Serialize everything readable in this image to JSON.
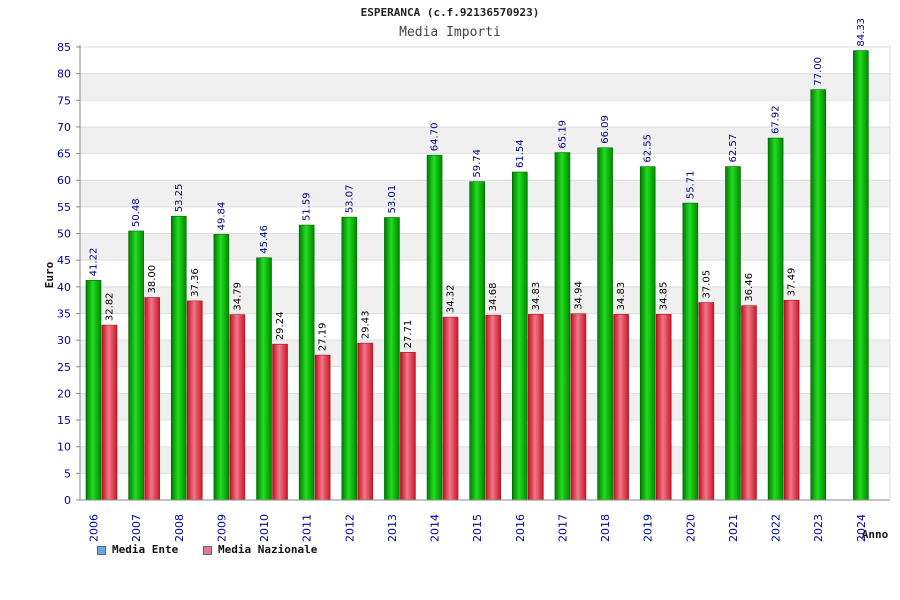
{
  "chart_data": {
    "type": "bar",
    "title": "ESPERANCA (c.f.92136570923)",
    "subtitle": "Media Importi",
    "ylabel": "Euro",
    "xlabel": "Anno",
    "ylim": [
      0,
      85
    ],
    "ytick_step": 5,
    "categories": [
      "2006",
      "2007",
      "2008",
      "2009",
      "2010",
      "2011",
      "2012",
      "2013",
      "2014",
      "2015",
      "2016",
      "2017",
      "2018",
      "2019",
      "2020",
      "2021",
      "2022",
      "2023",
      "2024"
    ],
    "series": [
      {
        "name": "Media Ente",
        "color": "#00c000",
        "values": [
          41.22,
          50.48,
          53.25,
          49.84,
          45.46,
          51.59,
          53.07,
          53.01,
          64.7,
          59.74,
          61.54,
          65.19,
          66.09,
          62.55,
          55.71,
          62.57,
          67.92,
          77.0,
          84.33
        ],
        "labels": [
          "41.22",
          "50.48",
          "53.25",
          "49.84",
          "45.46",
          "51.59",
          "53.07",
          "53.01",
          "64.70",
          "59.74",
          "61.54",
          "65.19",
          "66.09",
          "62.55",
          "55.71",
          "62.57",
          "67.92",
          "77.00",
          "84.33"
        ]
      },
      {
        "name": "Media Nazionale",
        "color": "#e03040",
        "values": [
          32.82,
          38.0,
          37.36,
          34.79,
          29.24,
          27.19,
          29.43,
          27.71,
          34.32,
          34.68,
          34.83,
          34.94,
          34.83,
          34.85,
          37.05,
          36.46,
          37.49,
          null,
          null
        ],
        "labels": [
          "32.82",
          "38.00",
          "37.36",
          "34.79",
          "29.24",
          "27.19",
          "29.43",
          "27.71",
          "34.32",
          "34.68",
          "34.83",
          "34.94",
          "34.83",
          "34.85",
          "37.05",
          "36.46",
          "37.49",
          null,
          null
        ]
      }
    ],
    "legend": [
      {
        "label": "Media Ente",
        "swatch": "#6aa6e8"
      },
      {
        "label": "Media Nazionale",
        "swatch": "#e07aa0"
      }
    ],
    "grid": true,
    "legend_position": "bottom-left"
  }
}
